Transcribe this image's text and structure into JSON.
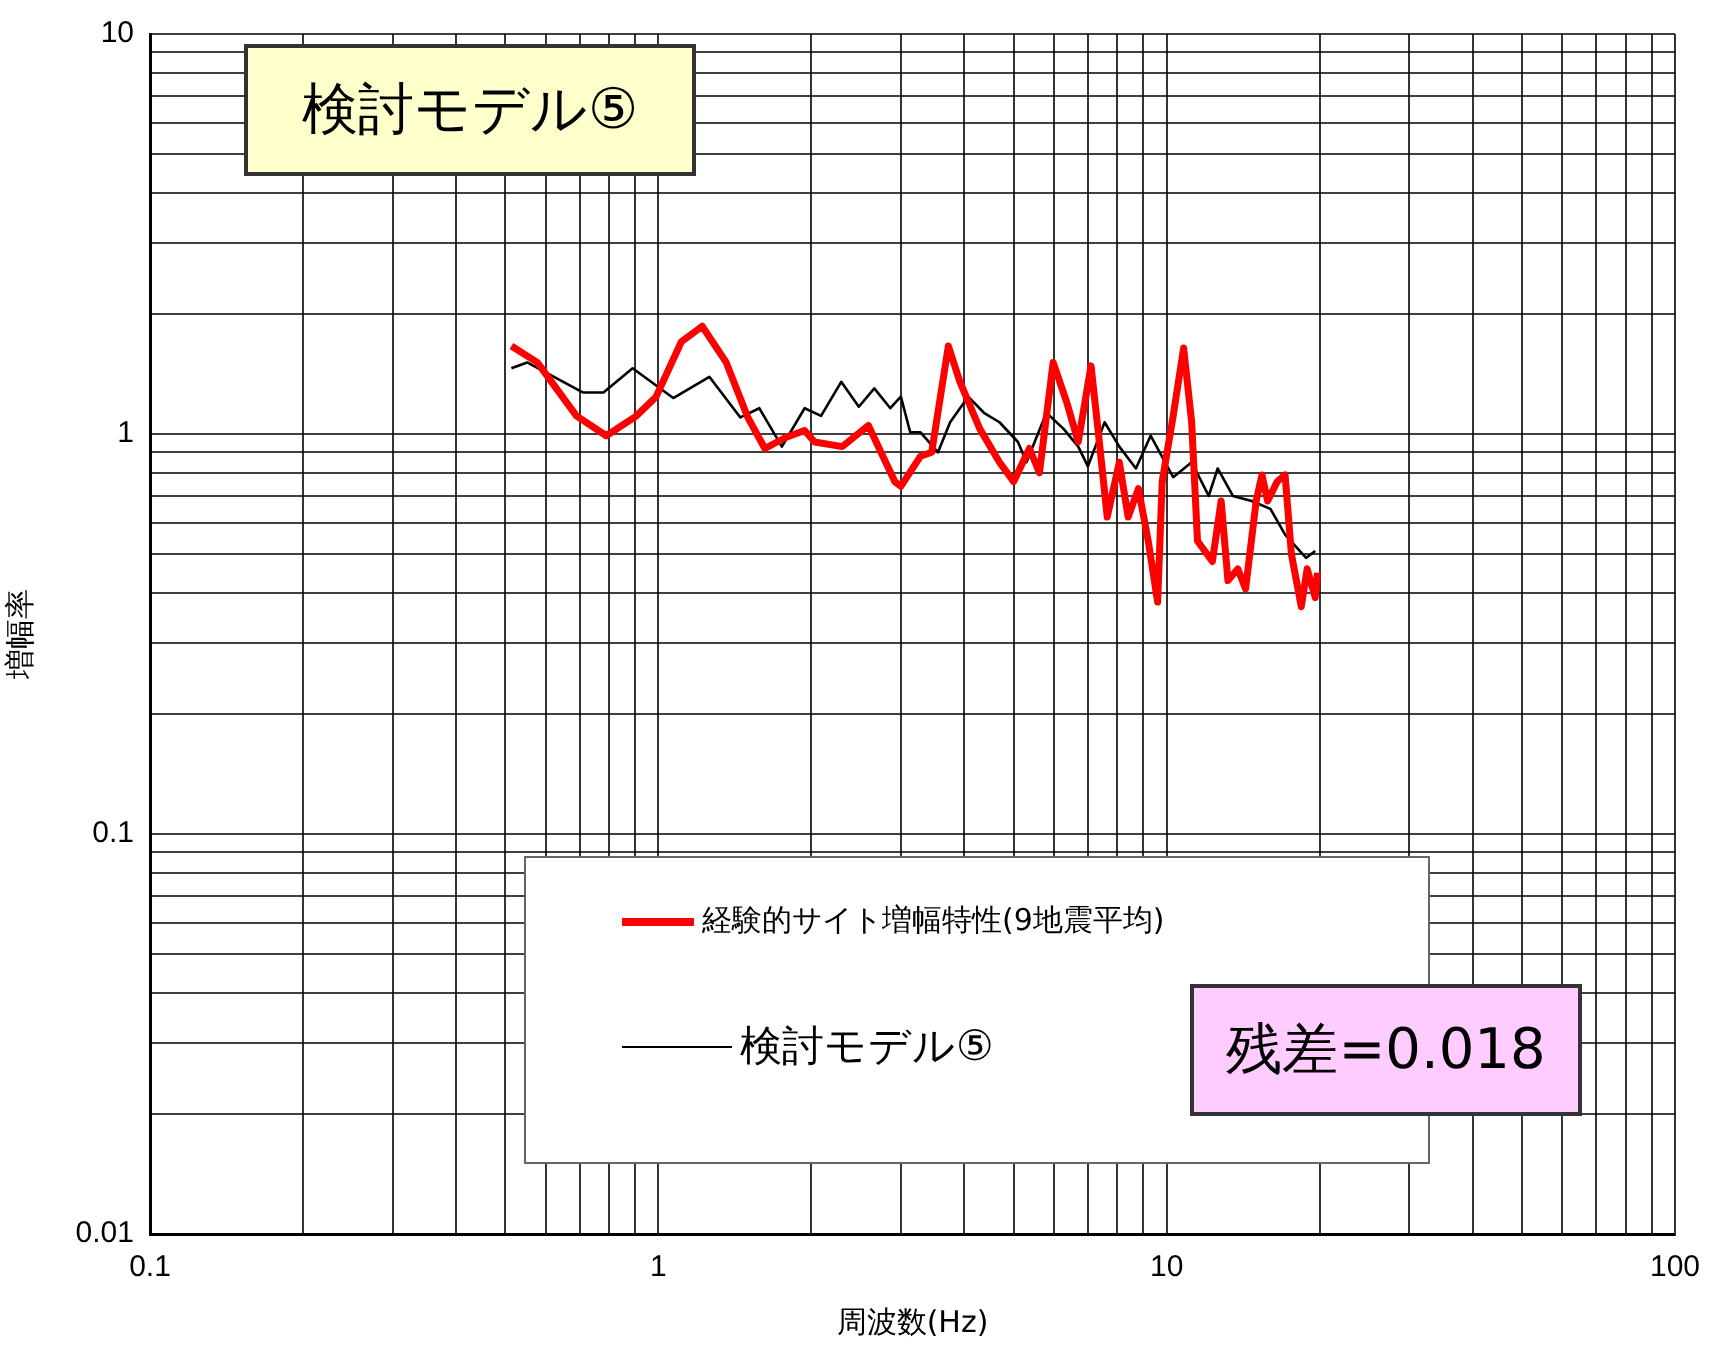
{
  "chart_data": {
    "type": "line",
    "title": "検討モデル⑤",
    "xlabel": "周波数(Hz)",
    "ylabel": "増幅率",
    "annotations": [
      "残差=0.018"
    ],
    "log": "xy",
    "grid": true,
    "legend": "bottom",
    "marker": "none",
    "line_style": "solid",
    "xlim": [
      0.1,
      100
    ],
    "ylim": [
      0.01,
      10
    ],
    "xticks": [
      0.1,
      {
        "value": 0.2,
        "label": null
      },
      {
        "value": 0.3,
        "label": null
      },
      {
        "value": 0.4,
        "label": null
      },
      {
        "value": 0.5,
        "label": null
      },
      {
        "value": 0.6,
        "label": null
      },
      {
        "value": 0.7,
        "label": null
      },
      {
        "value": 0.8,
        "label": null
      },
      {
        "value": 0.9,
        "label": null
      },
      1,
      {
        "value": 2,
        "label": null
      },
      {
        "value": 3,
        "label": null
      },
      {
        "value": 4,
        "label": null
      },
      {
        "value": 5,
        "label": null
      },
      {
        "value": 6,
        "label": null
      },
      {
        "value": 7,
        "label": null
      },
      {
        "value": 8,
        "label": null
      },
      {
        "value": 9,
        "label": null
      },
      10,
      {
        "value": 20,
        "label": null
      },
      {
        "value": 30,
        "label": null
      },
      {
        "value": 40,
        "label": null
      },
      {
        "value": 50,
        "label": null
      },
      {
        "value": 60,
        "label": null
      },
      {
        "value": 70,
        "label": null
      },
      {
        "value": 80,
        "label": null
      },
      {
        "value": 90,
        "label": null
      },
      100
    ],
    "yticks": [
      0.01,
      {
        "value": 0.02,
        "label": null
      },
      {
        "value": 0.03,
        "label": null
      },
      {
        "value": 0.04,
        "label": null
      },
      {
        "value": 0.05,
        "label": null
      },
      {
        "value": 0.06,
        "label": null
      },
      {
        "value": 0.07,
        "label": null
      },
      {
        "value": 0.08,
        "label": null
      },
      {
        "value": 0.09,
        "label": null
      },
      0.1,
      {
        "value": 0.2,
        "label": null
      },
      {
        "value": 0.3,
        "label": null
      },
      {
        "value": 0.4,
        "label": null
      },
      {
        "value": 0.5,
        "label": null
      },
      {
        "value": 0.6,
        "label": null
      },
      {
        "value": 0.7,
        "label": null
      },
      {
        "value": 0.8,
        "label": null
      },
      {
        "value": 0.9,
        "label": null
      },
      1,
      {
        "value": 2,
        "label": null
      },
      {
        "value": 3,
        "label": null
      },
      {
        "value": 4,
        "label": null
      },
      {
        "value": 5,
        "label": null
      },
      {
        "value": 6,
        "label": null
      },
      {
        "value": 7,
        "label": null
      },
      {
        "value": 8,
        "label": null
      },
      {
        "value": 9,
        "label": null
      },
      10
    ],
    "series": [
      {
        "name": "経験的サイト増幅特性(9地震平均)",
        "color": "#ff0000",
        "x": [
          0.514,
          0.578,
          0.69,
          0.79,
          0.906,
          0.99,
          1.11,
          1.22,
          1.36,
          1.5,
          1.62,
          1.78,
          1.94,
          2.03,
          2.3,
          2.59,
          2.92,
          3.0,
          3.28,
          3.45,
          3.72,
          3.92,
          4.29,
          4.69,
          5.0,
          5.37,
          5.62,
          5.98,
          6.36,
          6.7,
          7.1,
          7.35,
          7.64,
          8.07,
          8.4,
          8.8,
          9.2,
          9.6,
          9.8,
          10.3,
          10.8,
          11.2,
          11.5,
          12.3,
          12.8,
          13.2,
          13.8,
          14.3,
          15.0,
          15.4,
          15.8,
          16.5,
          17.1,
          17.6,
          18.4,
          18.9,
          19.6,
          19.8
        ],
        "values": [
          1.66,
          1.51,
          1.11,
          0.99,
          1.11,
          1.24,
          1.7,
          1.86,
          1.51,
          1.1,
          0.92,
          0.98,
          1.02,
          0.955,
          0.93,
          1.05,
          0.76,
          0.74,
          0.88,
          0.9,
          1.66,
          1.35,
          1.03,
          0.85,
          0.76,
          0.92,
          0.8,
          1.51,
          1.2,
          0.955,
          1.48,
          0.99,
          0.62,
          0.85,
          0.62,
          0.73,
          0.54,
          0.38,
          0.76,
          1.11,
          1.64,
          1.07,
          0.54,
          0.48,
          0.68,
          0.43,
          0.46,
          0.41,
          0.68,
          0.79,
          0.68,
          0.76,
          0.79,
          0.5,
          0.37,
          0.46,
          0.39,
          0.45
        ]
      },
      {
        "name": "検討モデル⑤",
        "color": "#000000",
        "x": [
          0.514,
          0.552,
          0.71,
          0.78,
          0.89,
          1.07,
          1.26,
          1.45,
          1.58,
          1.75,
          1.94,
          2.09,
          2.29,
          2.48,
          2.66,
          2.86,
          3.0,
          3.13,
          3.28,
          3.55,
          3.75,
          4.07,
          4.37,
          4.69,
          5.1,
          5.3,
          5.8,
          6.27,
          6.7,
          7.0,
          7.55,
          8.07,
          8.7,
          9.3,
          10.3,
          11.2,
          12.1,
          12.6,
          13.5,
          14.7,
          16.0,
          17.1,
          18.8,
          19.6
        ],
        "values": [
          1.46,
          1.51,
          1.27,
          1.27,
          1.46,
          1.23,
          1.39,
          1.1,
          1.16,
          0.93,
          1.16,
          1.11,
          1.35,
          1.17,
          1.3,
          1.16,
          1.24,
          1.01,
          1.01,
          0.9,
          1.07,
          1.24,
          1.13,
          1.07,
          0.955,
          0.85,
          1.13,
          1.03,
          0.93,
          0.83,
          1.07,
          0.93,
          0.82,
          0.99,
          0.78,
          0.85,
          0.7,
          0.82,
          0.7,
          0.68,
          0.65,
          0.56,
          0.49,
          0.51
        ]
      }
    ]
  }
}
